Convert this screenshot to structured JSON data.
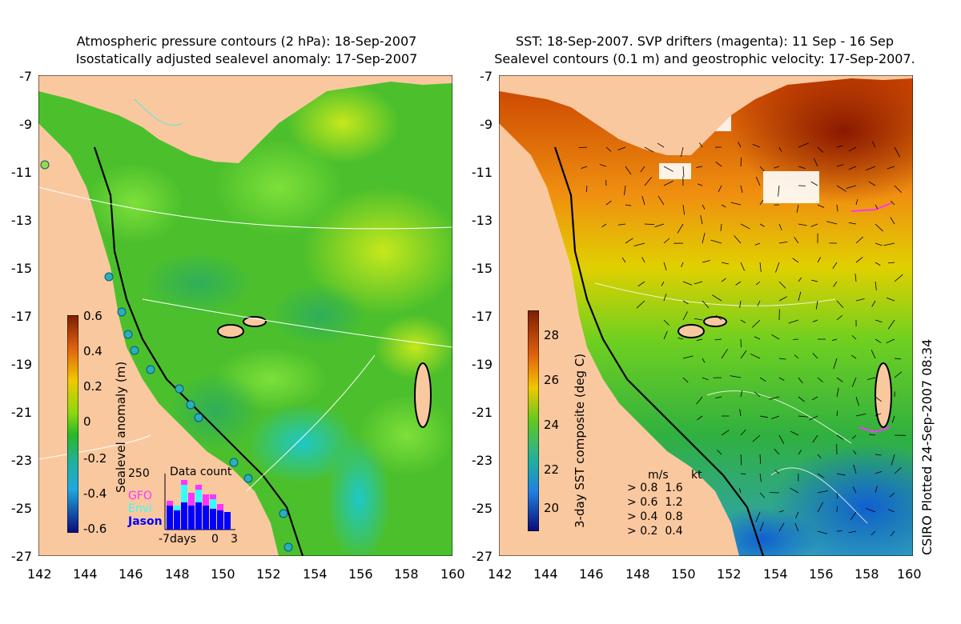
{
  "left_panel": {
    "title_line1": "Atmospheric pressure contours (2 hPa): 18-Sep-2007",
    "title_line2": "Isostatically adjusted sealevel anomaly: 17-Sep-2007",
    "colorbar_label": "Sealevel anomaly (m)",
    "colorbar_ticks": [
      "0.6",
      "0.4",
      "0.2",
      "0",
      "-0.2",
      "-0.4",
      "-0.6"
    ],
    "inset": {
      "title": "Data count",
      "ymax_label": "250",
      "legend": [
        {
          "label": "GFO",
          "color": "#ff33ff"
        },
        {
          "label": "Envi",
          "color": "#33ffff"
        },
        {
          "label": "Jason",
          "color": "#0000ff"
        }
      ],
      "x_left_label": "-7days",
      "x_mid_label": "0",
      "x_right_label": "3"
    }
  },
  "right_panel": {
    "title_line1": "SST: 18-Sep-2007. SVP drifters (magenta): 11 Sep - 16 Sep",
    "title_line2": "Sealevel contours (0.1 m) and geostrophic velocity: 17-Sep-2007.",
    "colorbar_label": "3-day SST composite (deg C)",
    "colorbar_ticks": [
      "28",
      "26",
      "24",
      "22",
      "20"
    ],
    "speed_legend": {
      "header_ms": "m/s",
      "header_kt": "kt",
      "rows": [
        {
          "ms": "0.8",
          "kt": "1.6"
        },
        {
          "ms": "0.6",
          "kt": "1.2"
        },
        {
          "ms": "0.4",
          "kt": "0.8"
        },
        {
          "ms": "0.2",
          "kt": "0.4"
        }
      ]
    }
  },
  "axes": {
    "y_ticks": [
      "-7",
      "-9",
      "-11",
      "-13",
      "-15",
      "-17",
      "-19",
      "-21",
      "-23",
      "-25",
      "-27"
    ],
    "x_ticks": [
      "142",
      "144",
      "146",
      "148",
      "150",
      "152",
      "154",
      "156",
      "158",
      "160"
    ]
  },
  "credit": "CSIRO Plotted 24-Sep-2007 08:34",
  "colors": {
    "land": "#fac89f",
    "sea_green": "#3fbf2a",
    "warm_red": "#a52000",
    "cold_blue": "#1060d0"
  }
}
